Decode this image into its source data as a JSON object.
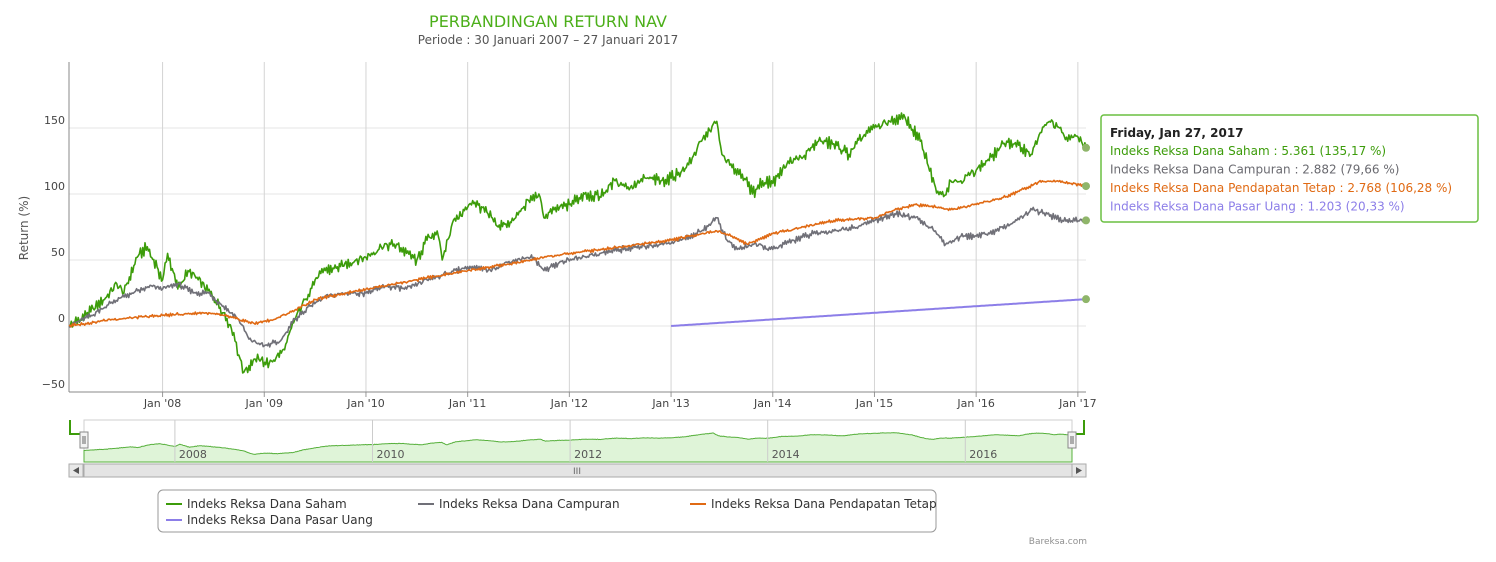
{
  "chart_data": {
    "type": "line",
    "title": "PERBANDINGAN RETURN NAV",
    "subtitle": "Periode : 30 Januari 2007 – 27 Januari 2017",
    "ylabel": "Return (%)",
    "xlabel": "",
    "ylim": [
      -50,
      200
    ],
    "xlim": [
      2007.08,
      2017.08
    ],
    "y_ticks": [
      {
        "value": -50,
        "label": "−50"
      },
      {
        "value": 0,
        "label": "0"
      },
      {
        "value": 50,
        "label": "50"
      },
      {
        "value": 100,
        "label": "100"
      },
      {
        "value": 150,
        "label": "150"
      }
    ],
    "x_ticks": [
      {
        "value": 2008,
        "label": "Jan '08"
      },
      {
        "value": 2009,
        "label": "Jan '09"
      },
      {
        "value": 2010,
        "label": "Jan '10"
      },
      {
        "value": 2011,
        "label": "Jan '11"
      },
      {
        "value": 2012,
        "label": "Jan '12"
      },
      {
        "value": 2013,
        "label": "Jan '13"
      },
      {
        "value": 2014,
        "label": "Jan '14"
      },
      {
        "value": 2015,
        "label": "Jan '15"
      },
      {
        "value": 2016,
        "label": "Jan '16"
      },
      {
        "value": 2017,
        "label": "Jan '17"
      }
    ],
    "grid": true,
    "legend_position": "bottom",
    "series": [
      {
        "name": "Indeks Reksa Dana Saham",
        "color": "#3c9c0a",
        "x": [
          2007.08,
          2007.25,
          2007.45,
          2007.55,
          2007.62,
          2007.75,
          2007.85,
          2008.0,
          2008.05,
          2008.15,
          2008.25,
          2008.35,
          2008.5,
          2008.6,
          2008.7,
          2008.75,
          2008.8,
          2008.85,
          2008.9,
          2009.05,
          2009.2,
          2009.3,
          2009.4,
          2009.5,
          2009.6,
          2009.75,
          2009.9,
          2010.0,
          2010.15,
          2010.3,
          2010.4,
          2010.5,
          2010.6,
          2010.7,
          2010.75,
          2010.85,
          2011.0,
          2011.05,
          2011.2,
          2011.3,
          2011.45,
          2011.6,
          2011.7,
          2011.75,
          2011.85,
          2012.0,
          2012.15,
          2012.3,
          2012.45,
          2012.6,
          2012.75,
          2012.9,
          2013.0,
          2013.15,
          2013.3,
          2013.38,
          2013.45,
          2013.5,
          2013.6,
          2013.7,
          2013.8,
          2013.9,
          2014.0,
          2014.15,
          2014.3,
          2014.45,
          2014.6,
          2014.75,
          2014.9,
          2015.0,
          2015.15,
          2015.3,
          2015.45,
          2015.6,
          2015.68,
          2015.75,
          2015.85,
          2016.0,
          2016.15,
          2016.3,
          2016.45,
          2016.55,
          2016.62,
          2016.72,
          2016.82,
          2016.9,
          2016.97,
          2017.08
        ],
        "values": [
          0,
          8,
          22,
          32,
          25,
          52,
          60,
          35,
          55,
          28,
          42,
          35,
          22,
          10,
          -5,
          -22,
          -35,
          -30,
          -25,
          -28,
          -18,
          5,
          20,
          35,
          42,
          45,
          50,
          52,
          60,
          62,
          55,
          50,
          65,
          72,
          50,
          78,
          90,
          95,
          85,
          75,
          80,
          95,
          100,
          82,
          88,
          92,
          100,
          98,
          110,
          105,
          112,
          110,
          112,
          120,
          140,
          148,
          155,
          130,
          120,
          115,
          100,
          110,
          108,
          125,
          128,
          140,
          138,
          130,
          145,
          150,
          155,
          158,
          140,
          105,
          98,
          110,
          110,
          118,
          128,
          140,
          135,
          130,
          145,
          155,
          150,
          140,
          145,
          135
        ]
      },
      {
        "name": "Indeks Reksa Dana Campuran",
        "color": "#707078",
        "x": [
          2007.08,
          2007.3,
          2007.5,
          2007.7,
          2007.9,
          2008.0,
          2008.15,
          2008.3,
          2008.45,
          2008.6,
          2008.75,
          2008.85,
          2009.0,
          2009.15,
          2009.3,
          2009.45,
          2009.6,
          2009.8,
          2010.0,
          2010.2,
          2010.4,
          2010.6,
          2010.8,
          2011.0,
          2011.2,
          2011.45,
          2011.65,
          2011.75,
          2011.9,
          2012.1,
          2012.3,
          2012.5,
          2012.7,
          2012.9,
          2013.1,
          2013.3,
          2013.45,
          2013.55,
          2013.65,
          2013.8,
          2014.0,
          2014.2,
          2014.4,
          2014.6,
          2014.8,
          2015.0,
          2015.2,
          2015.4,
          2015.6,
          2015.7,
          2015.85,
          2016.0,
          2016.2,
          2016.4,
          2016.55,
          2016.7,
          2016.85,
          2017.08
        ],
        "values": [
          0,
          8,
          18,
          25,
          30,
          28,
          32,
          25,
          25,
          15,
          5,
          -10,
          -15,
          -12,
          5,
          15,
          22,
          25,
          25,
          30,
          28,
          35,
          40,
          45,
          42,
          50,
          52,
          42,
          48,
          52,
          55,
          58,
          60,
          62,
          65,
          72,
          82,
          65,
          58,
          62,
          58,
          65,
          70,
          72,
          75,
          80,
          85,
          82,
          72,
          62,
          68,
          68,
          72,
          80,
          88,
          85,
          80,
          80
        ]
      },
      {
        "name": "Indeks Reksa Dana Pendapatan Tetap",
        "color": "#e06a14",
        "x": [
          2007.08,
          2007.5,
          2008.0,
          2008.4,
          2008.6,
          2008.75,
          2008.9,
          2009.1,
          2009.3,
          2009.5,
          2009.8,
          2010.0,
          2010.5,
          2011.0,
          2011.5,
          2011.75,
          2012.0,
          2012.5,
          2013.0,
          2013.3,
          2013.45,
          2013.6,
          2013.75,
          2014.0,
          2014.3,
          2014.6,
          2015.0,
          2015.2,
          2015.4,
          2015.6,
          2015.75,
          2016.0,
          2016.3,
          2016.5,
          2016.65,
          2016.8,
          2017.08
        ],
        "values": [
          0,
          5,
          8,
          10,
          8,
          5,
          2,
          5,
          12,
          20,
          25,
          28,
          35,
          42,
          48,
          52,
          55,
          60,
          65,
          70,
          72,
          68,
          62,
          70,
          75,
          80,
          82,
          88,
          92,
          90,
          88,
          92,
          98,
          105,
          110,
          110,
          106
        ]
      },
      {
        "name": "Indeks Reksa Dana Pasar Uang",
        "color": "#8c7ee8",
        "x": [
          2013.0,
          2014.0,
          2015.0,
          2016.0,
          2017.08
        ],
        "values": [
          0,
          5,
          10,
          15,
          20.33
        ]
      }
    ],
    "navigator": {
      "year_labels": [
        "2008",
        "2010",
        "2012",
        "2014",
        "2016"
      ],
      "year_values": [
        2008,
        2010,
        2012,
        2014,
        2016
      ]
    },
    "tooltip": {
      "date": "Friday, Jan 27, 2017",
      "rows": [
        {
          "label": "Indeks Reksa Dana Saham",
          "value": "5.361 (135,17 %)",
          "color": "#3c9c0a"
        },
        {
          "label": "Indeks Reksa Dana Campuran",
          "value": "2.882 (79,66 %)",
          "color": "#6a6a70"
        },
        {
          "label": "Indeks Reksa Dana Pendapatan Tetap",
          "value": "2.768 (106,28 %)",
          "color": "#e06a14"
        },
        {
          "label": "Indeks Reksa Dana Pasar Uang",
          "value": "1.203 (20,33 %)",
          "color": "#8c7ee8"
        }
      ]
    },
    "credit": "Bareksa.com"
  }
}
